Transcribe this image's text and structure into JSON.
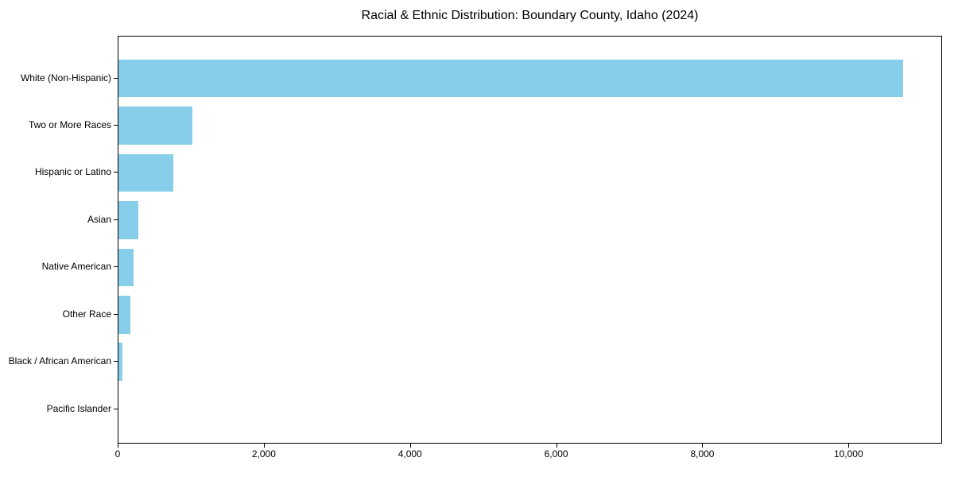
{
  "colors": {
    "bar": "#87CEEB",
    "axis": "#000000",
    "text": "#000000",
    "background": "#FFFFFF"
  },
  "chart_data": {
    "type": "bar",
    "orientation": "horizontal",
    "title": "Racial & Ethnic Distribution: Boundary County, Idaho (2024)",
    "categories": [
      "White (Non-Hispanic)",
      "Two or More Races",
      "Hispanic or Latino",
      "Asian",
      "Native American",
      "Other Race",
      "Black / African American",
      "Pacific Islander"
    ],
    "values": [
      10740,
      1010,
      750,
      270,
      210,
      160,
      50,
      0
    ],
    "xlabel": "",
    "ylabel": "",
    "xlim": [
      0,
      11280
    ],
    "x_ticks": [
      0,
      2000,
      4000,
      6000,
      8000,
      10000
    ],
    "x_tick_labels": [
      "0",
      "2,000",
      "4,000",
      "6,000",
      "8,000",
      "10,000"
    ],
    "grid": false,
    "legend": "none",
    "bar_color": "#87CEEB",
    "frame": "full-box"
  }
}
